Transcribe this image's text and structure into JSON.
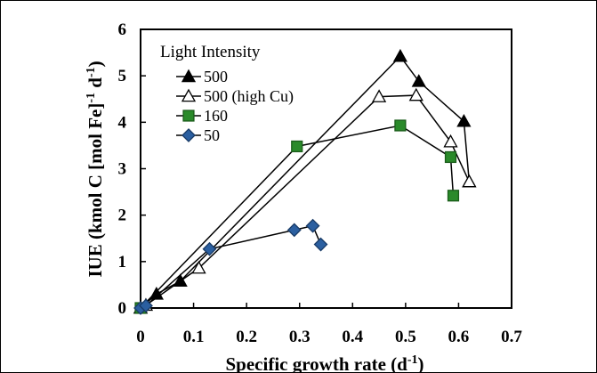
{
  "chart_data": {
    "type": "line",
    "xlabel": "Specific growth rate (d",
    "xlabel_sup": "-1",
    "xlabel_end": ")",
    "ylabel_parts": {
      "a": "IUE (kmol C [mol Fe]",
      "sup1": "-1",
      "b": " d",
      "sup2": "-1",
      "c": ")"
    },
    "xlim": [
      0,
      0.7
    ],
    "ylim": [
      0,
      6
    ],
    "xticks": [
      "0",
      "0.1",
      "0.2",
      "0.3",
      "0.4",
      "0.5",
      "0.6",
      "0.7"
    ],
    "yticks": [
      "0",
      "1",
      "2",
      "3",
      "4",
      "5",
      "6"
    ],
    "grid": false,
    "legend_title": "Light Intensity",
    "legend_position": "top-left",
    "series": [
      {
        "name": "500",
        "marker": "triangle",
        "fill": "#000000",
        "stroke": "#000000",
        "points": [
          [
            0.0,
            0.0
          ],
          [
            0.03,
            0.3
          ],
          [
            0.075,
            0.58
          ],
          [
            0.49,
            5.42
          ],
          [
            0.525,
            4.88
          ],
          [
            0.61,
            4.02
          ],
          [
            0.62,
            2.72
          ]
        ]
      },
      {
        "name": "500 (high Cu)",
        "marker": "triangle",
        "fill": "#ffffff",
        "stroke": "#000000",
        "points": [
          [
            0.0,
            0.0
          ],
          [
            0.01,
            0.06
          ],
          [
            0.11,
            0.86
          ],
          [
            0.45,
            4.55
          ],
          [
            0.52,
            4.58
          ],
          [
            0.585,
            3.58
          ],
          [
            0.62,
            2.72
          ]
        ]
      },
      {
        "name": "160",
        "marker": "square",
        "fill": "#2a8a2a",
        "stroke": "#1a5c1a",
        "points": [
          [
            0.0,
            0.0
          ],
          [
            0.295,
            3.48
          ],
          [
            0.49,
            3.93
          ],
          [
            0.585,
            3.25
          ],
          [
            0.59,
            2.42
          ]
        ]
      },
      {
        "name": "50",
        "marker": "diamond",
        "fill": "#2b5fa0",
        "stroke": "#183a66",
        "points": [
          [
            0.0,
            0.0
          ],
          [
            0.01,
            0.05
          ],
          [
            0.13,
            1.27
          ],
          [
            0.29,
            1.68
          ],
          [
            0.325,
            1.77
          ],
          [
            0.34,
            1.37
          ]
        ]
      }
    ]
  }
}
